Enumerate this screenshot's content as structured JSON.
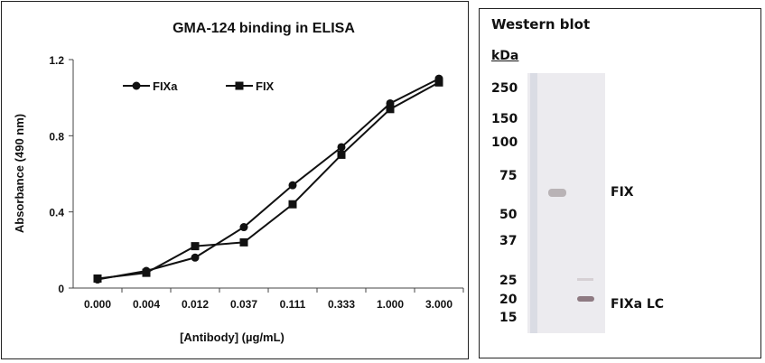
{
  "chart_data": [
    {
      "type": "line",
      "title": "GMA-124 binding in ELISA",
      "xlabel": "[Antibody] (µg/mL)",
      "ylabel": "Absorbance (490 nm)",
      "categories": [
        "0.000",
        "0.004",
        "0.012",
        "0.037",
        "0.111",
        "0.333",
        "1.000",
        "3.000"
      ],
      "ylim": [
        0,
        1.2
      ],
      "yticks": [
        "0",
        "0.4",
        "0.8",
        "1.2"
      ],
      "grid": false,
      "legend_placement": "top-left",
      "series": [
        {
          "name": "FIXa",
          "marker": "circle",
          "color": "#111111",
          "values": [
            0.045,
            0.09,
            0.16,
            0.32,
            0.54,
            0.74,
            0.97,
            1.1
          ]
        },
        {
          "name": "FIX",
          "marker": "square",
          "color": "#111111",
          "values": [
            0.05,
            0.08,
            0.22,
            0.24,
            0.44,
            0.7,
            0.94,
            1.08
          ]
        }
      ]
    }
  ],
  "blot": {
    "title": "Western blot",
    "unit_label": "kDa",
    "markers": [
      "250",
      "150",
      "100",
      "75",
      "50",
      "37",
      "25",
      "20",
      "15"
    ],
    "band_labels": [
      "FIX",
      "FIXa LC"
    ]
  }
}
